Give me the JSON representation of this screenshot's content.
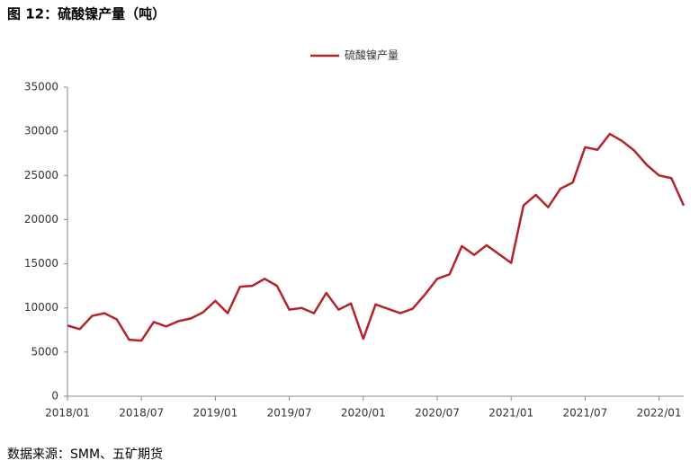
{
  "chart_data": {
    "type": "line",
    "title": "图 12：硫酸镍产量（吨）",
    "source": "数据来源：SMM、五矿期货",
    "categories": [
      "2018/01",
      null,
      null,
      null,
      null,
      null,
      "2018/07",
      null,
      null,
      null,
      null,
      null,
      "2019/01",
      null,
      null,
      null,
      null,
      null,
      "2019/07",
      null,
      null,
      null,
      null,
      null,
      "2020/01",
      null,
      null,
      null,
      null,
      null,
      "2020/07",
      null,
      null,
      null,
      null,
      null,
      "2021/01",
      null,
      null,
      null,
      null,
      null,
      "2021/07",
      null,
      null,
      null,
      null,
      null,
      "2022/01",
      null,
      null
    ],
    "series": [
      {
        "name": "硫酸镍产量",
        "color": "#b5222a",
        "values": [
          8000,
          7600,
          9100,
          9400,
          8700,
          6400,
          6300,
          8400,
          7900,
          8500,
          8800,
          9500,
          10800,
          9400,
          12400,
          12500,
          13300,
          12500,
          9800,
          10000,
          9400,
          11700,
          9800,
          10500,
          6500,
          10400,
          9900,
          9400,
          9900,
          11500,
          13300,
          13800,
          17000,
          16000,
          17100,
          16100,
          15100,
          21600,
          22800,
          21400,
          23500,
          24200,
          28200,
          27900,
          29700,
          28900,
          27800,
          26200,
          25000,
          24700,
          21600
        ]
      }
    ],
    "ylim": [
      0,
      35000
    ],
    "yticks": [
      0,
      5000,
      10000,
      15000,
      20000,
      25000,
      30000,
      35000
    ],
    "legend": "top",
    "grid": false
  }
}
